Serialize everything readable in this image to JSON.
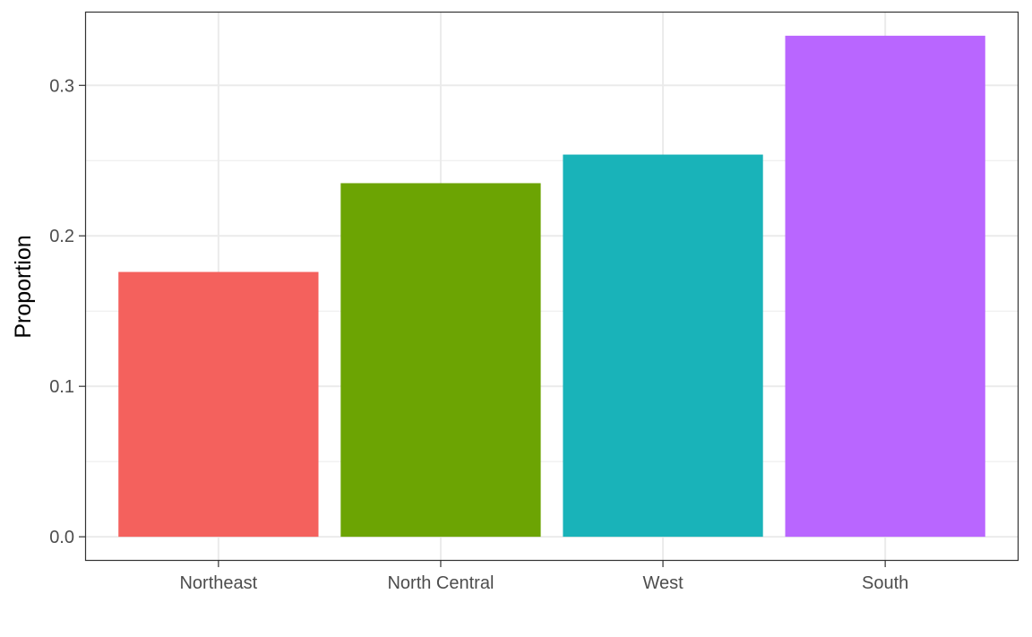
{
  "chart_data": {
    "type": "bar",
    "title": "",
    "xlabel": "",
    "ylabel": "Proportion",
    "categories": [
      "Northeast",
      "North Central",
      "West",
      "South"
    ],
    "values": [
      0.176,
      0.235,
      0.254,
      0.333
    ],
    "colors": [
      "#F8766D",
      "#7CAE00",
      "#00BFC4",
      "#C77CFF"
    ],
    "bar_colors_rendered": [
      "#F4615D",
      "#6CA403",
      "#19B3B9",
      "#B966FF"
    ],
    "ylim": [
      -0.016,
      0.349
    ],
    "yticks": [
      0.0,
      0.1,
      0.2,
      0.3
    ],
    "ytick_labels": [
      "0.0",
      "0.1",
      "0.2",
      "0.3"
    ],
    "grid": true,
    "legend": "none",
    "theme": "bw"
  }
}
